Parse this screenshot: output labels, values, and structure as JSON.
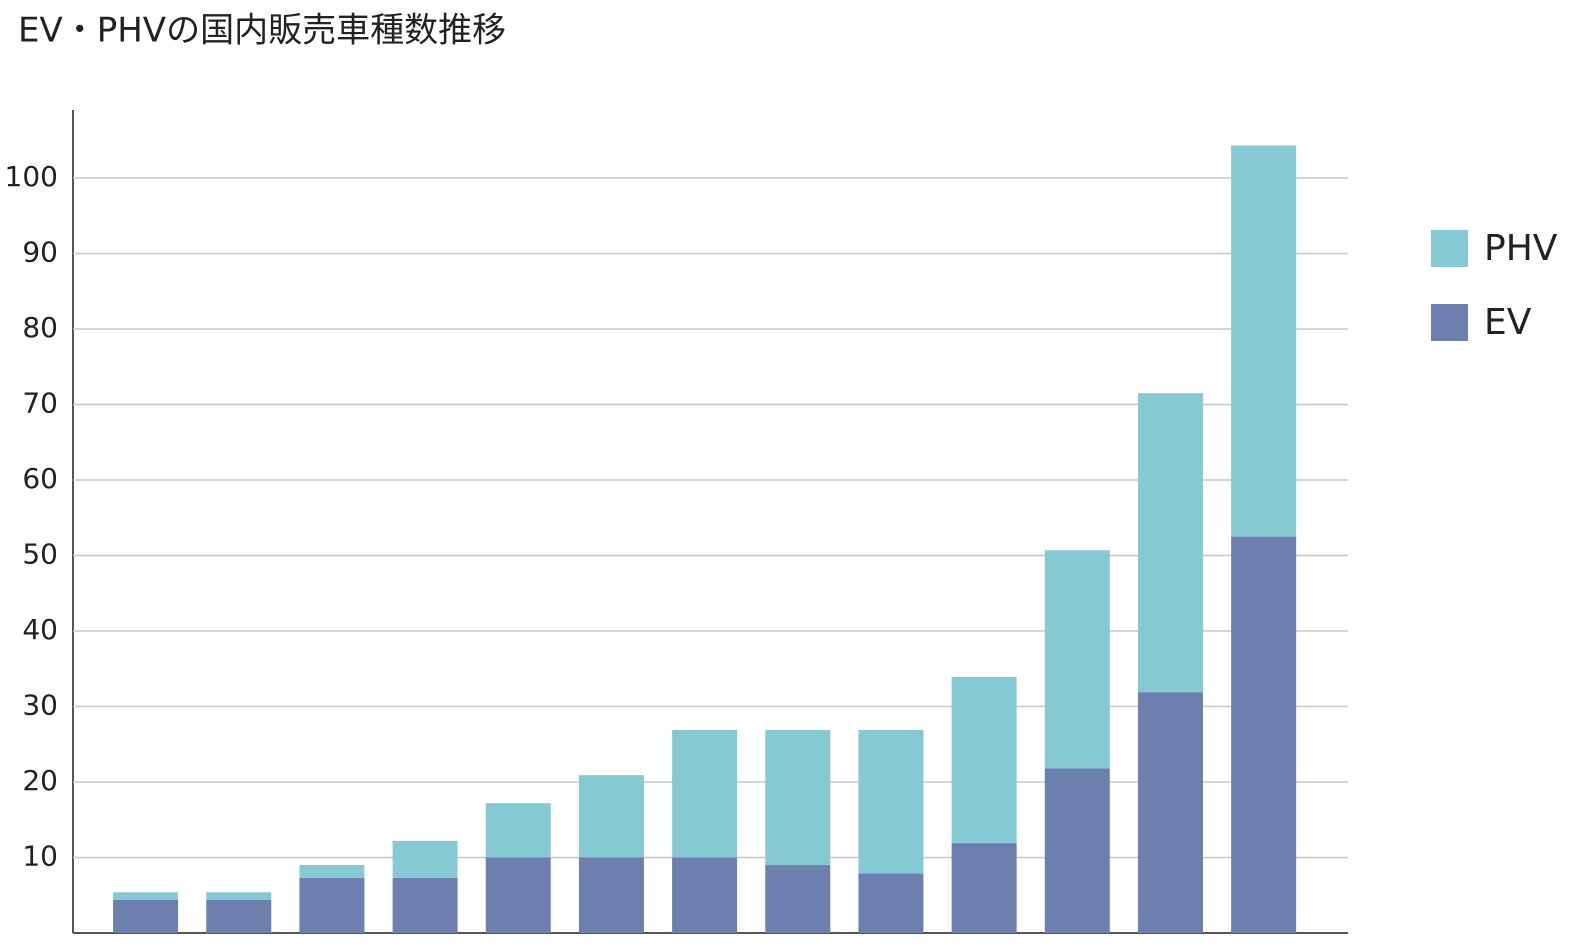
{
  "chart_data": {
    "type": "stacked-bar",
    "title": "EV・PHVの国内販売車種数推移",
    "categories": [
      null,
      null,
      null,
      null,
      null,
      null,
      null,
      null,
      null,
      null,
      null,
      null,
      null
    ],
    "series": [
      {
        "name": "EV",
        "color": "#6d7fae",
        "values": [
          4.4,
          4.4,
          7.3,
          7.3,
          10,
          10,
          10,
          9,
          7.9,
          11.9,
          21.8,
          31.9,
          52.5
        ]
      },
      {
        "name": "PHV",
        "color": "#85cad2",
        "values": [
          1.0,
          1.0,
          1.7,
          4.9,
          7.2,
          10.9,
          16.9,
          17.9,
          19.0,
          22.0,
          28.9,
          39.6,
          51.8
        ]
      }
    ],
    "ylim": [
      0,
      109
    ],
    "yticks": [
      10,
      20,
      30,
      40,
      50,
      60,
      70,
      80,
      90,
      100
    ],
    "grid": true,
    "legend": "right"
  }
}
